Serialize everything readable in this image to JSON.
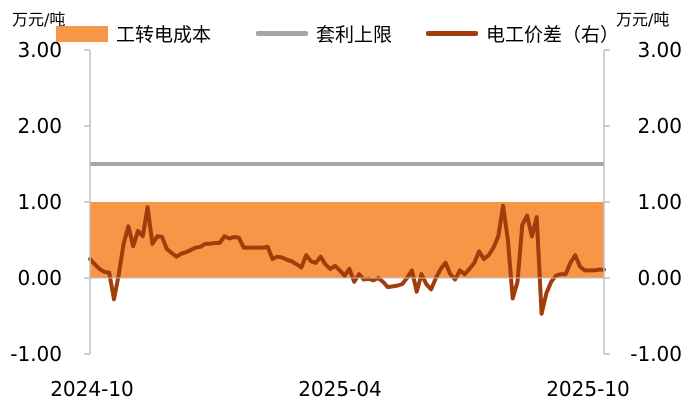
{
  "legend": {
    "cost": "工转电成本",
    "limit": "套利上限",
    "spread": "电工价差（右）"
  },
  "colors": {
    "cost": "#f79646",
    "limit": "#a6a6a6",
    "spread": "#a33c0b",
    "axis": "#bfbfbf"
  },
  "chart_data": {
    "type": "line",
    "left_axis": {
      "unit": "万元/吨",
      "min": -1.0,
      "max": 3.0,
      "ticks": [
        "-1.00",
        "0.00",
        "1.00",
        "2.00",
        "3.00"
      ]
    },
    "right_axis": {
      "unit": "万元/吨",
      "min": -1.0,
      "max": 3.0,
      "ticks": [
        "-1.00",
        "0.00",
        "1.00",
        "2.00",
        "3.00"
      ]
    },
    "x_ticks": [
      "2024-10",
      "2025-04",
      "2025-10"
    ],
    "series": [
      {
        "name": "工转电成本",
        "kind": "area",
        "axis": "left",
        "value": 1.0
      },
      {
        "name": "套利上限",
        "kind": "line",
        "axis": "left",
        "value": 1.5
      },
      {
        "name": "电工价差（右）",
        "kind": "line",
        "axis": "right",
        "values": [
          0.25,
          0.18,
          0.12,
          0.08,
          0.07,
          -0.28,
          0.05,
          0.45,
          0.68,
          0.42,
          0.62,
          0.55,
          0.93,
          0.45,
          0.55,
          0.54,
          0.38,
          0.33,
          0.28,
          0.32,
          0.34,
          0.37,
          0.4,
          0.41,
          0.45,
          0.45,
          0.46,
          0.46,
          0.55,
          0.52,
          0.54,
          0.53,
          0.4,
          0.4,
          0.4,
          0.4,
          0.4,
          0.41,
          0.25,
          0.28,
          0.27,
          0.24,
          0.22,
          0.18,
          0.14,
          0.3,
          0.22,
          0.2,
          0.28,
          0.18,
          0.12,
          0.16,
          0.1,
          0.03,
          0.12,
          -0.05,
          0.05,
          -0.02,
          -0.01,
          -0.03,
          0.0,
          -0.05,
          -0.12,
          -0.11,
          -0.1,
          -0.08,
          0.0,
          0.1,
          -0.18,
          0.05,
          -0.08,
          -0.15,
          0.0,
          0.12,
          0.2,
          0.05,
          -0.02,
          0.1,
          0.05,
          0.12,
          0.2,
          0.35,
          0.25,
          0.3,
          0.4,
          0.55,
          0.95,
          0.5,
          -0.27,
          -0.05,
          0.7,
          0.82,
          0.55,
          0.8,
          -0.47,
          -0.2,
          -0.05,
          0.03,
          0.05,
          0.05,
          0.2,
          0.3,
          0.15,
          0.1,
          0.1,
          0.1,
          0.11,
          0.11
        ]
      }
    ]
  }
}
